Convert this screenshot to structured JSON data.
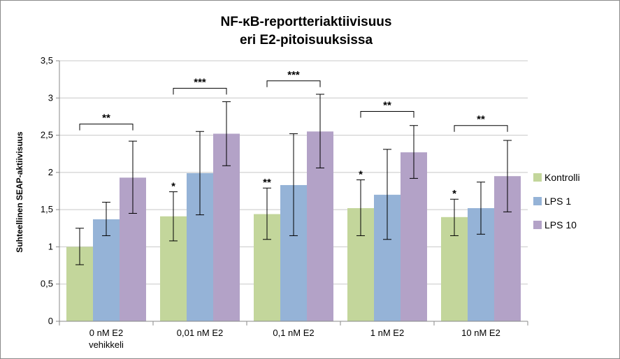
{
  "chart_data": {
    "type": "bar",
    "title_lines": [
      "NF-κB-reportteriaktiivisuus",
      "eri E2-pitoisuuksissa"
    ],
    "ylabel": "Suhteellinen SEAP-aktiivisuus",
    "xlabel": "",
    "ylim": [
      0,
      3.5
    ],
    "yticks": [
      "0",
      "0,5",
      "1",
      "1,5",
      "2",
      "2,5",
      "3",
      "3,5"
    ],
    "categories": [
      [
        "0 nM E2",
        "vehikkeli"
      ],
      [
        "0,01 nM E2"
      ],
      [
        "0,1 nM E2"
      ],
      [
        "1 nM E2"
      ],
      [
        "10 nM E2"
      ]
    ],
    "series": [
      {
        "name": "Kontrolli",
        "color": "#c3d69b",
        "values": [
          1.0,
          1.41,
          1.44,
          1.52,
          1.4
        ],
        "err_low": [
          0.24,
          0.33,
          0.34,
          0.37,
          0.25
        ],
        "err_high": [
          0.25,
          0.33,
          0.35,
          0.38,
          0.24
        ],
        "sig": [
          "",
          "*",
          "**",
          "*",
          "*"
        ]
      },
      {
        "name": "LPS 1",
        "color": "#95b3d7",
        "values": [
          1.37,
          1.99,
          1.83,
          1.7,
          1.52
        ],
        "err_low": [
          0.22,
          0.56,
          0.68,
          0.6,
          0.35
        ],
        "err_high": [
          0.23,
          0.56,
          0.69,
          0.61,
          0.35
        ],
        "sig": [
          "",
          "",
          "",
          "",
          ""
        ]
      },
      {
        "name": "LPS 10",
        "color": "#b3a2c7",
        "values": [
          1.93,
          2.52,
          2.55,
          2.27,
          1.95
        ],
        "err_low": [
          0.48,
          0.43,
          0.49,
          0.35,
          0.48
        ],
        "err_high": [
          0.49,
          0.43,
          0.5,
          0.36,
          0.48
        ],
        "sig": [
          "",
          "",
          "",
          "",
          ""
        ]
      }
    ],
    "brackets": [
      {
        "group": 0,
        "label": "**",
        "y": 2.65
      },
      {
        "group": 1,
        "label": "***",
        "y": 3.13
      },
      {
        "group": 2,
        "label": "***",
        "y": 3.23
      },
      {
        "group": 3,
        "label": "**",
        "y": 2.82
      },
      {
        "group": 4,
        "label": "**",
        "y": 2.63
      }
    ],
    "grid": true,
    "legend_position": "right"
  }
}
